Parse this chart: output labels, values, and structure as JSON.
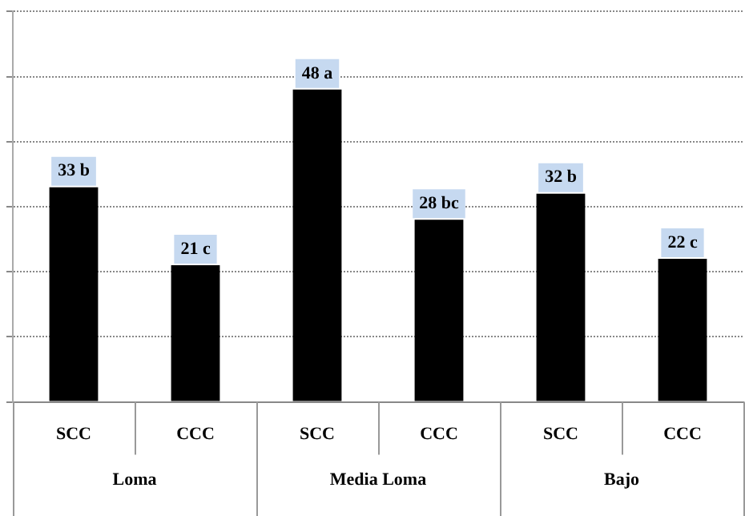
{
  "chart_data": {
    "type": "bar",
    "categories": [
      "SCC",
      "CCC",
      "SCC",
      "CCC",
      "SCC",
      "CCC"
    ],
    "values": [
      33,
      21,
      48,
      28,
      32,
      22
    ],
    "value_labels": [
      "33 b",
      "21 c",
      "48 a",
      "28 bc",
      "32 b",
      "22 c"
    ],
    "color": "#000000",
    "ylim": [
      0,
      60
    ],
    "yticks": [
      {
        "value": 0,
        "label": null
      },
      {
        "value": 10,
        "label": null
      },
      {
        "value": 20,
        "label": null
      },
      {
        "value": 30,
        "label": null
      },
      {
        "value": 40,
        "label": null
      },
      {
        "value": 50,
        "label": null
      },
      {
        "value": 60,
        "label": null
      }
    ],
    "grid": "y",
    "legend": false,
    "annotations": [
      "Loma",
      "Media Loma",
      "Bajo"
    ]
  }
}
